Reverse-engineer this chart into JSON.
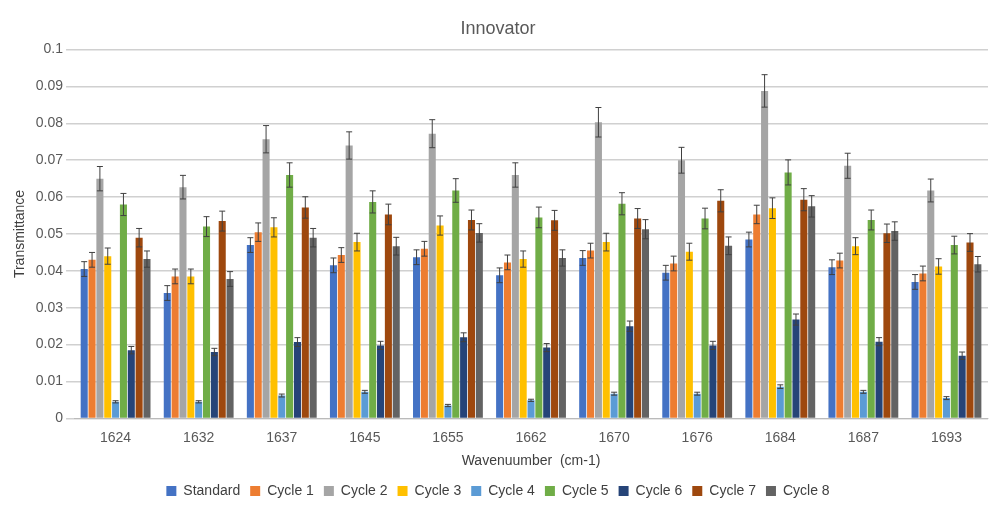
{
  "chart_data": {
    "type": "bar",
    "title": "Innovator",
    "xlabel": "Wavenuumber  (cm-1)",
    "ylabel": "Transmittance",
    "categories": [
      "1624",
      "1632",
      "1637",
      "1645",
      "1655",
      "1662",
      "1670",
      "1676",
      "1684",
      "1687",
      "1693"
    ],
    "ylim": [
      0,
      0.1
    ],
    "yticks": [
      0,
      0.01,
      0.02,
      0.03,
      0.04,
      0.05,
      0.06,
      0.07,
      0.08,
      0.09,
      0.1
    ],
    "grid": "y",
    "legend": "bottom",
    "series": [
      {
        "name": "Standard",
        "color": "#4472c4",
        "values": [
          0.0405,
          0.034,
          0.047,
          0.0415,
          0.0437,
          0.0388,
          0.0435,
          0.0395,
          0.0485,
          0.041,
          0.037
        ],
        "errors": [
          0.002,
          0.002,
          0.002,
          0.002,
          0.002,
          0.002,
          0.002,
          0.002,
          0.002,
          0.002,
          0.002
        ]
      },
      {
        "name": "Cycle 1",
        "color": "#ed7d31",
        "values": [
          0.043,
          0.0385,
          0.0505,
          0.0443,
          0.046,
          0.0423,
          0.0455,
          0.042,
          0.0553,
          0.0428,
          0.0393
        ],
        "errors": [
          0.002,
          0.002,
          0.0025,
          0.002,
          0.002,
          0.002,
          0.002,
          0.002,
          0.0025,
          0.002,
          0.002
        ]
      },
      {
        "name": "Cycle 2",
        "color": "#a5a5a5",
        "values": [
          0.065,
          0.0627,
          0.0757,
          0.074,
          0.0772,
          0.066,
          0.0803,
          0.07,
          0.0888,
          0.0685,
          0.0618
        ],
        "errors": [
          0.0033,
          0.0032,
          0.0037,
          0.0037,
          0.0038,
          0.0033,
          0.004,
          0.0035,
          0.0044,
          0.0034,
          0.0031
        ]
      },
      {
        "name": "Cycle 3",
        "color": "#ffc000",
        "values": [
          0.044,
          0.0385,
          0.0518,
          0.0478,
          0.0523,
          0.0432,
          0.0478,
          0.0452,
          0.057,
          0.0467,
          0.0412
        ],
        "errors": [
          0.0022,
          0.002,
          0.0026,
          0.0024,
          0.0026,
          0.0022,
          0.0024,
          0.0023,
          0.0028,
          0.0023,
          0.0021
        ]
      },
      {
        "name": "Cycle 4",
        "color": "#5b9bd5",
        "values": [
          0.0045,
          0.0045,
          0.0062,
          0.0072,
          0.0035,
          0.0049,
          0.0067,
          0.0067,
          0.0086,
          0.0072,
          0.0055
        ],
        "errors": [
          0.0003,
          0.0003,
          0.0004,
          0.0004,
          0.0003,
          0.0003,
          0.0004,
          0.0004,
          0.0005,
          0.0004,
          0.0004
        ]
      },
      {
        "name": "Cycle 5",
        "color": "#70ad47",
        "values": [
          0.058,
          0.052,
          0.066,
          0.0587,
          0.0618,
          0.0545,
          0.0582,
          0.0542,
          0.0667,
          0.0538,
          0.047
        ],
        "errors": [
          0.003,
          0.0027,
          0.0033,
          0.003,
          0.0032,
          0.0028,
          0.003,
          0.0028,
          0.0034,
          0.0027,
          0.0024
        ]
      },
      {
        "name": "Cycle 6",
        "color": "#264478",
        "values": [
          0.0185,
          0.018,
          0.0207,
          0.0198,
          0.022,
          0.0192,
          0.025,
          0.0198,
          0.0268,
          0.0208,
          0.017
        ],
        "errors": [
          0.001,
          0.001,
          0.0012,
          0.0011,
          0.0012,
          0.0011,
          0.0014,
          0.0011,
          0.0015,
          0.0011,
          0.001
        ]
      },
      {
        "name": "Cycle 7",
        "color": "#9e480e",
        "values": [
          0.049,
          0.0535,
          0.0572,
          0.0553,
          0.0538,
          0.0537,
          0.0542,
          0.059,
          0.0593,
          0.0502,
          0.0477
        ],
        "errors": [
          0.0025,
          0.0027,
          0.0029,
          0.0028,
          0.0027,
          0.0027,
          0.0027,
          0.003,
          0.003,
          0.0025,
          0.0024
        ]
      },
      {
        "name": "Cycle 8",
        "color": "#636363",
        "values": [
          0.0432,
          0.0378,
          0.049,
          0.0467,
          0.0503,
          0.0435,
          0.0513,
          0.0468,
          0.0575,
          0.0508,
          0.0418
        ],
        "errors": [
          0.0022,
          0.002,
          0.0025,
          0.0024,
          0.0025,
          0.0022,
          0.0026,
          0.0024,
          0.0029,
          0.0025,
          0.0021
        ]
      }
    ]
  }
}
